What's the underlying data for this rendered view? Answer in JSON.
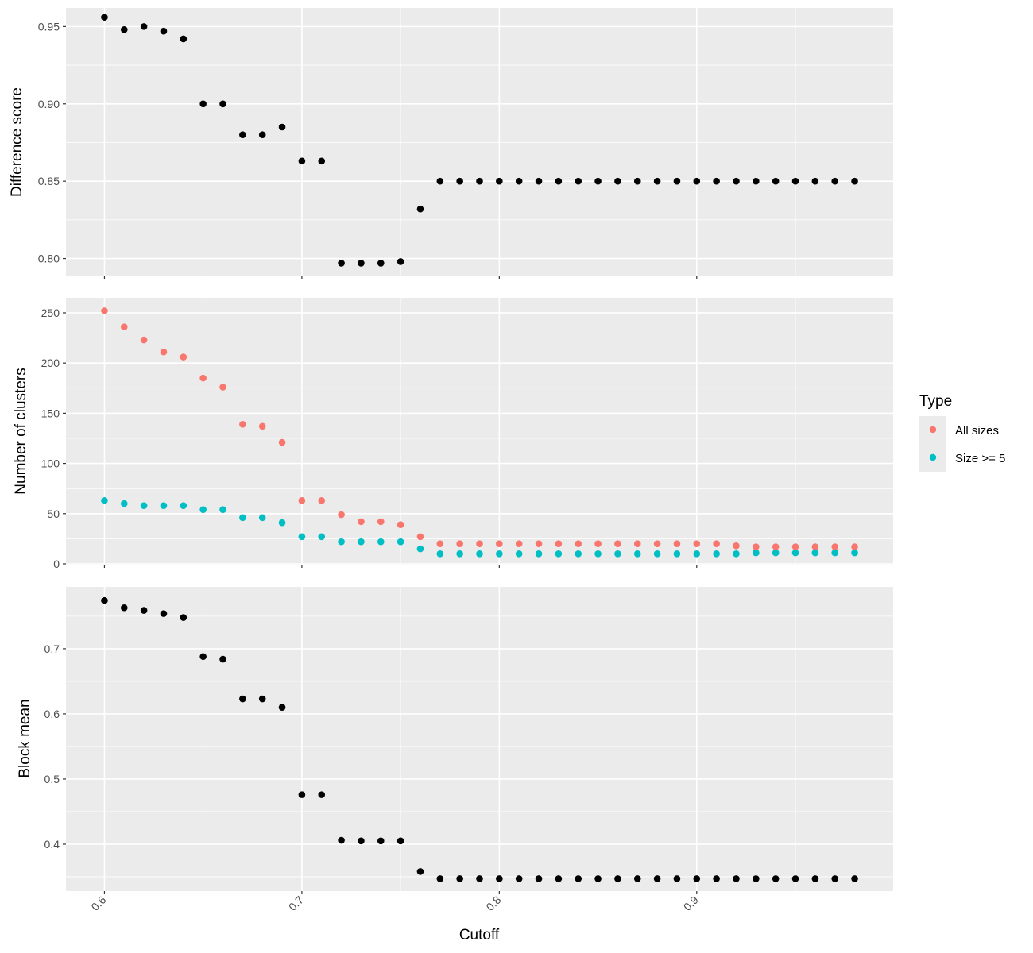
{
  "colors": {
    "panel_bg": "#EBEBEB",
    "grid": "#FFFFFF",
    "tick": "#333333",
    "black_points": "#000000",
    "all_sizes": "#F8766D",
    "size_ge_5": "#00BFC4"
  },
  "chart_data": [
    {
      "type": "scatter",
      "panel": "top",
      "ylabel": "Difference score",
      "xlim": [
        0.5805,
        0.9995
      ],
      "ylim": [
        0.789,
        0.962
      ],
      "yticks": [
        0.8,
        0.85,
        0.9,
        0.95
      ],
      "ytick_labels": [
        "0.80",
        "0.85",
        "0.90",
        "0.95"
      ],
      "grid": true,
      "series": [
        {
          "color": "#000000",
          "x": [
            0.6,
            0.61,
            0.62,
            0.63,
            0.64,
            0.65,
            0.66,
            0.67,
            0.68,
            0.69,
            0.7,
            0.71,
            0.72,
            0.73,
            0.74,
            0.75,
            0.76,
            0.77,
            0.78,
            0.79,
            0.8,
            0.81,
            0.82,
            0.83,
            0.84,
            0.85,
            0.86,
            0.87,
            0.88,
            0.89,
            0.9,
            0.91,
            0.92,
            0.93,
            0.94,
            0.95,
            0.96,
            0.97,
            0.98
          ],
          "y": [
            0.956,
            0.948,
            0.95,
            0.947,
            0.942,
            0.9,
            0.9,
            0.88,
            0.88,
            0.885,
            0.863,
            0.863,
            0.797,
            0.797,
            0.797,
            0.798,
            0.832,
            0.85,
            0.85,
            0.85,
            0.85,
            0.85,
            0.85,
            0.85,
            0.85,
            0.85,
            0.85,
            0.85,
            0.85,
            0.85,
            0.85,
            0.85,
            0.85,
            0.85,
            0.85,
            0.85,
            0.85,
            0.85,
            0.85
          ]
        }
      ]
    },
    {
      "type": "scatter",
      "panel": "middle",
      "ylabel": "Number of clusters",
      "xlim": [
        0.5805,
        0.9995
      ],
      "ylim": [
        -0.8,
        265
      ],
      "yticks": [
        0,
        50,
        100,
        150,
        200,
        250
      ],
      "ytick_labels": [
        "0",
        "50",
        "100",
        "150",
        "200",
        "250"
      ],
      "grid": true,
      "legend": {
        "title": "Type",
        "placement": "right",
        "entries": [
          "All sizes",
          "Size >= 5"
        ]
      },
      "series": [
        {
          "name": "All sizes",
          "color": "#F8766D",
          "x": [
            0.6,
            0.61,
            0.62,
            0.63,
            0.64,
            0.65,
            0.66,
            0.67,
            0.68,
            0.69,
            0.7,
            0.71,
            0.72,
            0.73,
            0.74,
            0.75,
            0.76,
            0.77,
            0.78,
            0.79,
            0.8,
            0.81,
            0.82,
            0.83,
            0.84,
            0.85,
            0.86,
            0.87,
            0.88,
            0.89,
            0.9,
            0.91,
            0.92,
            0.93,
            0.94,
            0.95,
            0.96,
            0.97,
            0.98
          ],
          "y": [
            252,
            236,
            223,
            211,
            206,
            185,
            176,
            139,
            137,
            121,
            63,
            63,
            49,
            42,
            42,
            39,
            27,
            20,
            20,
            20,
            20,
            20,
            20,
            20,
            20,
            20,
            20,
            20,
            20,
            20,
            20,
            20,
            18,
            17,
            17,
            17,
            17,
            17,
            17
          ]
        },
        {
          "name": "Size >= 5",
          "color": "#00BFC4",
          "x": [
            0.6,
            0.61,
            0.62,
            0.63,
            0.64,
            0.65,
            0.66,
            0.67,
            0.68,
            0.69,
            0.7,
            0.71,
            0.72,
            0.73,
            0.74,
            0.75,
            0.76,
            0.77,
            0.78,
            0.79,
            0.8,
            0.81,
            0.82,
            0.83,
            0.84,
            0.85,
            0.86,
            0.87,
            0.88,
            0.89,
            0.9,
            0.91,
            0.92,
            0.93,
            0.94,
            0.95,
            0.96,
            0.97,
            0.98
          ],
          "y": [
            63,
            60,
            58,
            58,
            58,
            54,
            54,
            46,
            46,
            41,
            27,
            27,
            22,
            22,
            22,
            22,
            15,
            10,
            10,
            10,
            10,
            10,
            10,
            10,
            10,
            10,
            10,
            10,
            10,
            10,
            10,
            10,
            10,
            11,
            11,
            11,
            11,
            11,
            11
          ]
        }
      ]
    },
    {
      "type": "scatter",
      "panel": "bottom",
      "ylabel": "Block mean",
      "xlabel": "Cutoff",
      "xlim": [
        0.5805,
        0.9995
      ],
      "ylim": [
        0.328,
        0.795
      ],
      "yticks": [
        0.4,
        0.5,
        0.6,
        0.7
      ],
      "ytick_labels": [
        "0.4",
        "0.5",
        "0.6",
        "0.7"
      ],
      "xticks": [
        0.6,
        0.7,
        0.8,
        0.9
      ],
      "xtick_labels": [
        "0.6",
        "0.7",
        "0.8",
        "0.9"
      ],
      "grid": true,
      "series": [
        {
          "color": "#000000",
          "x": [
            0.6,
            0.61,
            0.62,
            0.63,
            0.64,
            0.65,
            0.66,
            0.67,
            0.68,
            0.69,
            0.7,
            0.71,
            0.72,
            0.73,
            0.74,
            0.75,
            0.76,
            0.77,
            0.78,
            0.79,
            0.8,
            0.81,
            0.82,
            0.83,
            0.84,
            0.85,
            0.86,
            0.87,
            0.88,
            0.89,
            0.9,
            0.91,
            0.92,
            0.93,
            0.94,
            0.95,
            0.96,
            0.97,
            0.98
          ],
          "y": [
            0.774,
            0.763,
            0.759,
            0.754,
            0.748,
            0.688,
            0.684,
            0.623,
            0.623,
            0.61,
            0.476,
            0.476,
            0.406,
            0.405,
            0.405,
            0.405,
            0.358,
            0.347,
            0.347,
            0.347,
            0.347,
            0.347,
            0.347,
            0.347,
            0.347,
            0.347,
            0.347,
            0.347,
            0.347,
            0.347,
            0.347,
            0.347,
            0.347,
            0.347,
            0.347,
            0.347,
            0.347,
            0.347,
            0.347
          ]
        }
      ]
    }
  ]
}
